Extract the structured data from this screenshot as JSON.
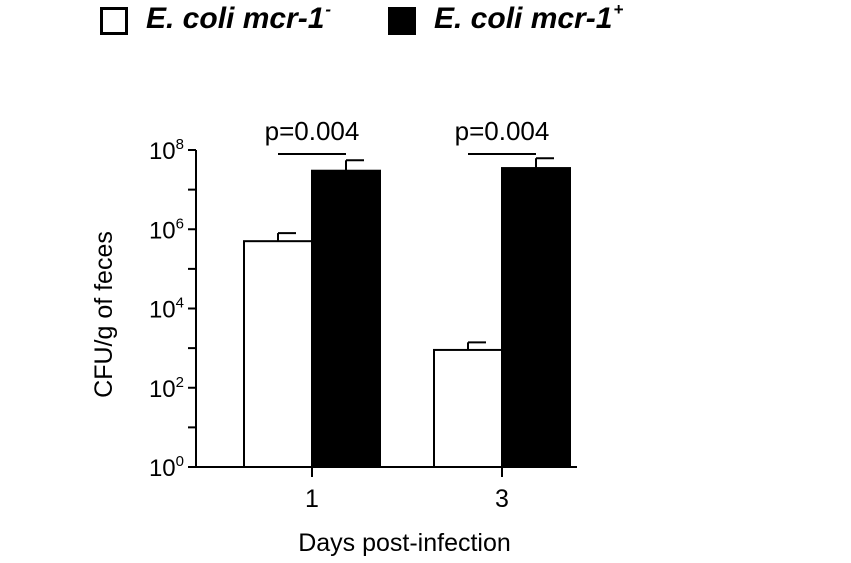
{
  "legend": [
    {
      "name": "E. coli mcr-1",
      "sup": "-",
      "fill": "#ffffff"
    },
    {
      "name": "E. coli mcr-1",
      "sup": "+",
      "fill": "#000000"
    }
  ],
  "chart_data": {
    "type": "bar",
    "scale": "log10",
    "xlabel": "Days post-infection",
    "ylabel": "CFU/g of feces",
    "categories": [
      "1",
      "3"
    ],
    "ylim": [
      1,
      100000000
    ],
    "ytick_base": "10",
    "ytick_exponents": [
      "0",
      "2",
      "4",
      "6",
      "8"
    ],
    "series": [
      {
        "name": "E. coli mcr-1-",
        "color": "#ffffff",
        "values": [
          500000,
          900
        ],
        "error_upper": [
          800000,
          1400
        ]
      },
      {
        "name": "E. coli mcr-1+",
        "color": "#000000",
        "values": [
          30000000,
          35000000
        ],
        "error_upper": [
          55000000,
          62000000
        ]
      }
    ],
    "annotations": [
      "p=0.004",
      "p=0.004"
    ],
    "grid": false,
    "legend_position": "top"
  }
}
